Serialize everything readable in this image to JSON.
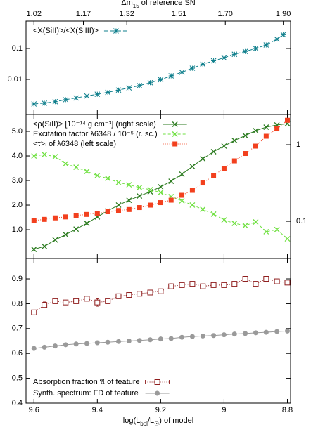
{
  "chart_data": [
    {
      "type": "line",
      "x2label": [
        "Δm",
        "15",
        "  of reference SN"
      ],
      "x2ticks": [
        {
          "value": 9.6,
          "label": "1.02"
        },
        {
          "value": 9.444,
          "label": "1.17"
        },
        {
          "value": 9.307,
          "label": "1.32"
        },
        {
          "value": 9.142,
          "label": "1.51"
        },
        {
          "value": 8.996,
          "label": "1.70"
        },
        {
          "value": 8.813,
          "label": "1.90"
        }
      ],
      "xlim": [
        9.625,
        8.79
      ],
      "xticks": [
        9.6,
        9.4,
        9.2,
        9.0,
        8.8
      ],
      "ylim": [
        0.00073,
        0.77
      ],
      "yticks": [
        0.01,
        0.1
      ],
      "log_y": true,
      "legend": "upper left",
      "x": [
        9.6,
        9.567,
        9.533,
        9.5,
        9.467,
        9.433,
        9.4,
        9.367,
        9.333,
        9.3,
        9.267,
        9.233,
        9.2,
        9.167,
        9.133,
        9.1,
        9.067,
        9.033,
        9.0,
        8.967,
        8.933,
        8.9,
        8.867,
        8.833,
        8.813
      ],
      "series": [
        {
          "name": "<X(SiII)>/<X(SiIII)>",
          "color": "#0f7f8c",
          "marker": "asterisk",
          "dash": "6,3",
          "values": [
            0.0016,
            0.0017,
            0.0019,
            0.0022,
            0.0025,
            0.0029,
            0.0033,
            0.0038,
            0.0045,
            0.0053,
            0.0063,
            0.0078,
            0.0098,
            0.013,
            0.017,
            0.023,
            0.031,
            0.04,
            0.05,
            0.065,
            0.08,
            0.1,
            0.13,
            0.2,
            0.28
          ]
        }
      ]
    },
    {
      "type": "line",
      "xlim": [
        9.625,
        8.79
      ],
      "xticks": [
        9.6,
        9.4,
        9.2,
        9.0,
        8.8
      ],
      "ylim": [
        -0.17,
        5.686
      ],
      "yticks": [
        {
          "value": 1,
          "label": "1.0"
        },
        {
          "value": 2,
          "label": "2.0"
        },
        {
          "value": 3,
          "label": "3.0"
        },
        {
          "value": 4,
          "label": "4.0"
        },
        {
          "value": 5,
          "label": "5.0"
        }
      ],
      "y2lim": [
        0.0327,
        2.48
      ],
      "y2ticks": [
        0.1,
        1
      ],
      "log_y2": true,
      "legend": "upper left",
      "x": [
        9.6,
        9.567,
        9.533,
        9.5,
        9.467,
        9.433,
        9.4,
        9.367,
        9.333,
        9.3,
        9.267,
        9.233,
        9.2,
        9.167,
        9.133,
        9.1,
        9.067,
        9.033,
        9.0,
        8.967,
        8.933,
        8.9,
        8.867,
        8.833,
        8.8
      ],
      "series": [
        {
          "name": "<ρ(SiII)> [10⁻¹⁴ g cm⁻³] (right scale)",
          "color": "#2a7a1e",
          "marker": "cross",
          "dash": "",
          "axis": "y2",
          "values": [
            0.043,
            0.047,
            0.057,
            0.067,
            0.079,
            0.094,
            0.114,
            0.137,
            0.163,
            0.188,
            0.214,
            0.243,
            0.282,
            0.333,
            0.412,
            0.519,
            0.656,
            0.81,
            0.96,
            1.135,
            1.316,
            1.525,
            1.695,
            1.81,
            1.88
          ]
        },
        {
          "name": "Excitation factor λ6348 / 10⁻⁵ (r. sc.)",
          "color": "#6fe040",
          "marker": "cross",
          "dash": "4,3",
          "axis": "y2",
          "values": [
            0.713,
            0.744,
            0.698,
            0.565,
            0.508,
            0.448,
            0.395,
            0.363,
            0.32,
            0.3,
            0.276,
            0.259,
            0.238,
            0.21,
            0.185,
            0.163,
            0.143,
            0.124,
            0.104,
            0.094,
            0.088,
            0.098,
            0.073,
            0.078,
            0.059
          ]
        },
        {
          "name": "<τ>ₗ of λ6348 (left scale)",
          "color": "#f2401e",
          "marker": "square",
          "dash": "1,2",
          "values": [
            1.37,
            1.42,
            1.48,
            1.52,
            1.58,
            1.62,
            1.67,
            1.73,
            1.78,
            1.82,
            1.9,
            2.0,
            2.1,
            2.2,
            2.4,
            2.6,
            2.9,
            3.2,
            3.5,
            3.8,
            4.1,
            4.4,
            4.8,
            5.1,
            5.45
          ]
        }
      ]
    },
    {
      "type": "line",
      "xlabel": [
        "log(L",
        "bol",
        "/L",
        "☉",
        ")  of model"
      ],
      "xlim": [
        9.625,
        8.79
      ],
      "xticks": [
        9.6,
        9.4,
        9.2,
        9.0,
        8.8
      ],
      "ylim": [
        0.4,
        0.982
      ],
      "yticks": [
        0.4,
        0.5,
        0.6,
        0.7,
        0.8,
        0.9
      ],
      "legend": "lower left",
      "x": [
        9.6,
        9.567,
        9.533,
        9.5,
        9.467,
        9.433,
        9.4,
        9.367,
        9.333,
        9.3,
        9.267,
        9.233,
        9.2,
        9.167,
        9.133,
        9.1,
        9.067,
        9.033,
        9.0,
        8.967,
        8.933,
        8.9,
        8.867,
        8.833,
        8.8
      ],
      "series": [
        {
          "name": "Absorption fraction 𝔄 of feature",
          "color": "#8e1c1c",
          "marker": "open-square",
          "dash": "1,2",
          "values": [
            0.765,
            0.795,
            0.81,
            0.805,
            0.81,
            0.82,
            0.805,
            0.81,
            0.83,
            0.835,
            0.84,
            0.845,
            0.85,
            0.87,
            0.875,
            0.88,
            0.87,
            0.875,
            0.875,
            0.88,
            0.9,
            0.88,
            0.9,
            0.89,
            0.885
          ],
          "errors": [
            0.008,
            0.012,
            0.008,
            0.008,
            0.008,
            0.008,
            0.015,
            0.008,
            0.008,
            0.008,
            0.008,
            0.008,
            0.008,
            0.01,
            0.008,
            0.008,
            0.008,
            0.008,
            0.008,
            0.008,
            0.01,
            0.008,
            0.008,
            0.008,
            0.008
          ]
        },
        {
          "name": "Synth. spectrum: FD of feature",
          "color": "#9a9a9a",
          "marker": "circle",
          "dash": "",
          "values": [
            0.62,
            0.625,
            0.63,
            0.635,
            0.638,
            0.64,
            0.643,
            0.645,
            0.648,
            0.65,
            0.652,
            0.655,
            0.658,
            0.66,
            0.665,
            0.668,
            0.67,
            0.672,
            0.675,
            0.678,
            0.68,
            0.683,
            0.685,
            0.688,
            0.69
          ]
        }
      ]
    }
  ]
}
